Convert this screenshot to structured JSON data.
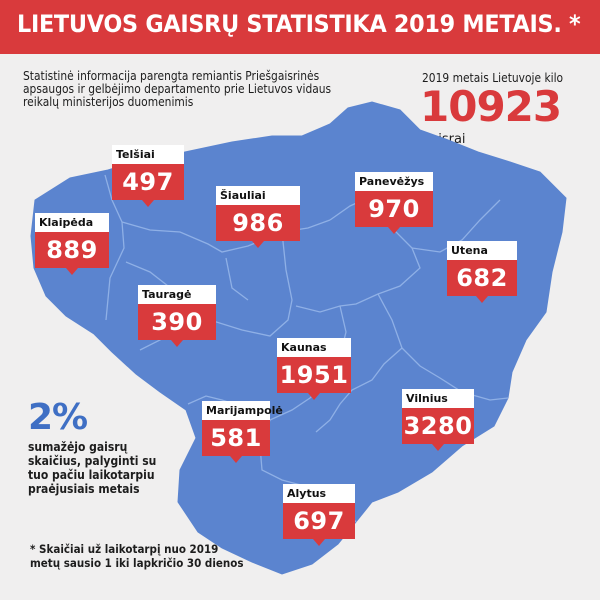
{
  "header": {
    "title": "LIETUVOS GAISRŲ STATISTIKA 2019 METAIS. *"
  },
  "intro": "Statistinė informacija parengta remiantis Priešgaisrinės apsaugos ir gelbėjimo departamento prie Lietuvos vidaus reikalų ministerijos duomenimis",
  "total": {
    "label": "2019 metais Lietuvoje kilo",
    "value": "10923",
    "unit": "gaisrai"
  },
  "regions": [
    {
      "name": "Telšiai",
      "value": "497"
    },
    {
      "name": "Šiauliai",
      "value": "986"
    },
    {
      "name": "Panevėžys",
      "value": "970"
    },
    {
      "name": "Klaipėda",
      "value": "889"
    },
    {
      "name": "Utena",
      "value": "682"
    },
    {
      "name": "Tauragė",
      "value": "390"
    },
    {
      "name": "Kaunas",
      "value": "1951"
    },
    {
      "name": "Marijampolė",
      "value": "581"
    },
    {
      "name": "Vilnius",
      "value": "3280"
    },
    {
      "name": "Alytus",
      "value": "697"
    }
  ],
  "change": {
    "value": "2%",
    "text": "sumažėjo gaisrų skaičius, palyginti su tuo pačiu laikotarpiu praėjusiais metais"
  },
  "footnote": "* Skaičiai už laikotarpį nuo 2019 metų sausio 1 iki lapkričio 30 dienos",
  "colors": {
    "accent": "#d93a3c",
    "map_fill": "#5b84cf",
    "map_border": "#8fb0e6",
    "change": "#3f6fc4"
  }
}
